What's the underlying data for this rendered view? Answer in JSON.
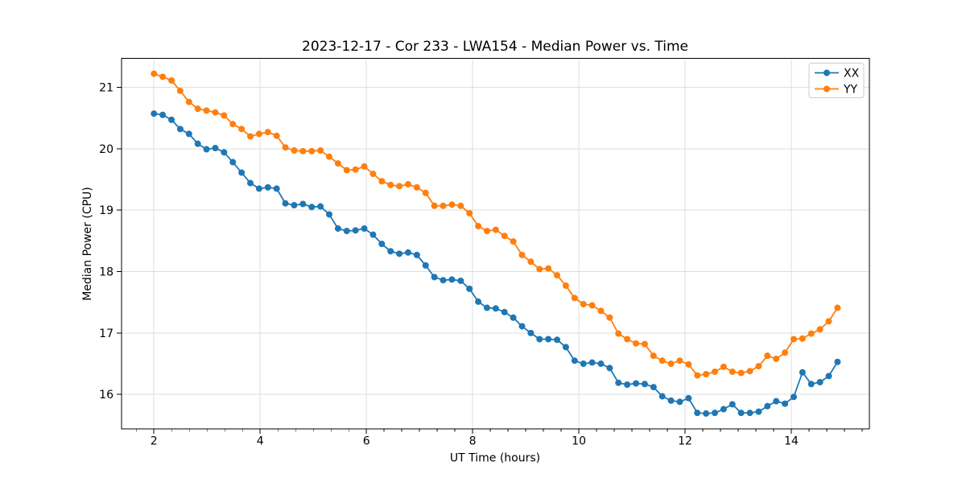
{
  "figure": {
    "title": "2023-12-17 - Cor 233 - LWA154 - Median Power vs. Time",
    "xlabel": "UT Time (hours)",
    "ylabel": "Median Power (CPU)"
  },
  "legend": {
    "position": "upper right",
    "entries": [
      {
        "label": "XX",
        "color": "#1f77b4"
      },
      {
        "label": "YY",
        "color": "#ff7f0e"
      }
    ]
  },
  "chart_data": {
    "type": "line",
    "title": "2023-12-17 - Cor 233 - LWA154 - Median Power vs. Time",
    "xlabel": "UT Time (hours)",
    "ylabel": "Median Power (CPU)",
    "marker": "o",
    "grid": true,
    "legend_position": "upper right",
    "xlim": [
      1.39,
      15.47
    ],
    "ylim": [
      15.44,
      21.47
    ],
    "xticks": [
      2,
      4,
      6,
      8,
      10,
      12,
      14
    ],
    "yticks": [
      16,
      17,
      18,
      19,
      20,
      21
    ],
    "x_minor_tick_step": 0.3333,
    "x": [
      2.0,
      2.165,
      2.33,
      2.495,
      2.66,
      2.825,
      2.99,
      3.155,
      3.32,
      3.485,
      3.65,
      3.815,
      3.98,
      4.145,
      4.31,
      4.475,
      4.64,
      4.805,
      4.97,
      5.135,
      5.3,
      5.465,
      5.63,
      5.795,
      5.96,
      6.125,
      6.29,
      6.455,
      6.62,
      6.785,
      6.95,
      7.115,
      7.28,
      7.445,
      7.61,
      7.775,
      7.94,
      8.105,
      8.27,
      8.435,
      8.6,
      8.765,
      8.93,
      9.095,
      9.26,
      9.425,
      9.59,
      9.755,
      9.92,
      10.085,
      10.25,
      10.415,
      10.58,
      10.745,
      10.91,
      11.075,
      11.24,
      11.405,
      11.57,
      11.735,
      11.9,
      12.065,
      12.23,
      12.395,
      12.56,
      12.725,
      12.89,
      13.055,
      13.22,
      13.385,
      13.55,
      13.715,
      13.88,
      14.045,
      14.21,
      14.375,
      14.54,
      14.705,
      14.87
    ],
    "series": [
      {
        "name": "XX",
        "color": "#1f77b4",
        "values": [
          20.57,
          20.55,
          20.47,
          20.32,
          20.24,
          20.08,
          19.99,
          20.01,
          19.94,
          19.78,
          19.61,
          19.44,
          19.35,
          19.37,
          19.35,
          19.11,
          19.08,
          19.1,
          19.05,
          19.06,
          18.93,
          18.7,
          18.66,
          18.67,
          18.7,
          18.6,
          18.45,
          18.33,
          18.29,
          18.31,
          18.27,
          18.1,
          17.91,
          17.86,
          17.87,
          17.85,
          17.72,
          17.51,
          17.41,
          17.4,
          17.34,
          17.25,
          17.11,
          17.0,
          16.9,
          16.9,
          16.89,
          16.77,
          16.55,
          16.5,
          16.52,
          16.5,
          16.43,
          16.19,
          16.16,
          16.18,
          16.17,
          16.12,
          15.97,
          15.9,
          15.88,
          15.94,
          15.7,
          15.69,
          15.7,
          15.76,
          15.84,
          15.7,
          15.7,
          15.72,
          15.81,
          15.89,
          15.85,
          15.96,
          16.36,
          16.17,
          16.2,
          16.3,
          16.53
        ]
      },
      {
        "name": "YY",
        "color": "#ff7f0e",
        "values": [
          21.22,
          21.17,
          21.11,
          20.94,
          20.76,
          20.65,
          20.62,
          20.59,
          20.54,
          20.4,
          20.32,
          20.2,
          20.24,
          20.27,
          20.21,
          20.02,
          19.97,
          19.96,
          19.96,
          19.97,
          19.87,
          19.76,
          19.65,
          19.66,
          19.71,
          19.59,
          19.47,
          19.41,
          19.39,
          19.42,
          19.37,
          19.28,
          19.07,
          19.07,
          19.09,
          19.07,
          18.95,
          18.74,
          18.66,
          18.68,
          18.58,
          18.49,
          18.27,
          18.16,
          18.04,
          18.05,
          17.94,
          17.77,
          17.57,
          17.47,
          17.45,
          17.36,
          17.25,
          16.99,
          16.9,
          16.83,
          16.82,
          16.63,
          16.55,
          16.5,
          16.55,
          16.49,
          16.31,
          16.33,
          16.37,
          16.45,
          16.37,
          16.35,
          16.38,
          16.46,
          16.63,
          16.58,
          16.68,
          16.9,
          16.91,
          16.99,
          17.06,
          17.19,
          17.41
        ]
      }
    ]
  },
  "style": {
    "grid_color": "#dedede",
    "spine_color": "#000000",
    "background": "#ffffff",
    "line_width": 1.8,
    "marker_radius": 4
  }
}
